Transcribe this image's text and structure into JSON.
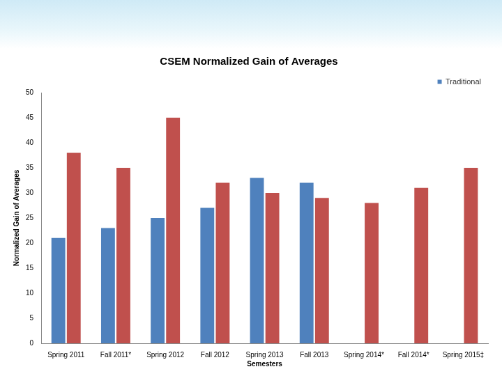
{
  "chart_data": {
    "type": "bar",
    "title": "CSEM Normalized Gain of Averages",
    "x_label": "Semesters",
    "y_label": "Normalized Gain of Averages",
    "categories": [
      "Spring 2011",
      "Fall 2011*",
      "Spring 2012",
      "Fall 2012",
      "Spring 2013",
      "Fall 2013",
      "Spring 2014*",
      "Fall 2014*",
      "Spring 2015‡"
    ],
    "series": [
      {
        "name": "Traditional",
        "color": "#4f81bd",
        "values": [
          21,
          23,
          25,
          27,
          33,
          32,
          null,
          null,
          null
        ]
      },
      {
        "color": "#c0504d",
        "values": [
          38,
          35,
          45,
          32,
          30,
          29,
          28,
          31,
          35
        ]
      }
    ],
    "ylim": [
      0,
      50
    ],
    "yticks": [
      0,
      5,
      10,
      15,
      20,
      25,
      30,
      35,
      40,
      45,
      50
    ],
    "grid": false,
    "legend": "top-right"
  }
}
